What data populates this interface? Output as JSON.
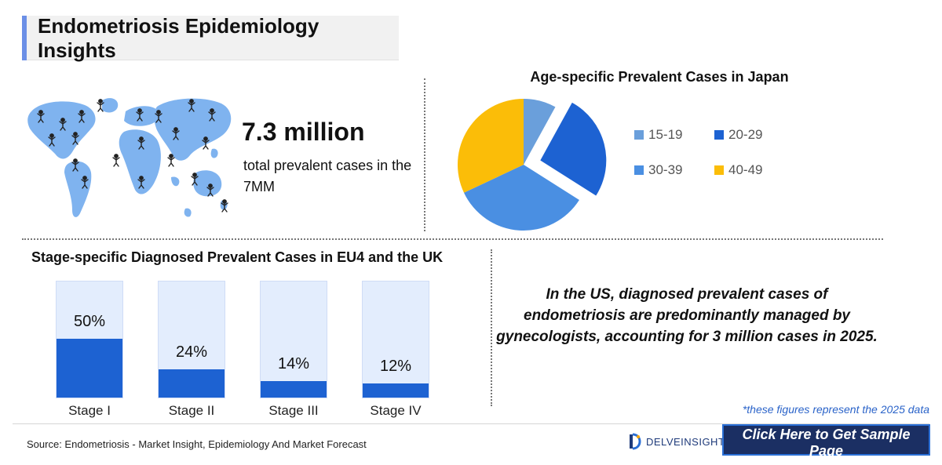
{
  "header": {
    "title": "Endometriosis Epidemiology Insights"
  },
  "summary": {
    "value": "7.3 million",
    "caption": "total prevalent cases in the 7MM"
  },
  "map": {
    "icon": "world-map-person-icons",
    "color": "#7fb3ef"
  },
  "chart_data": [
    {
      "type": "pie",
      "title": "Age-specific Prevalent Cases in Japan",
      "labels": [
        "15-19",
        "20-29",
        "30-39",
        "40-49"
      ],
      "values": [
        8,
        26,
        34,
        32
      ],
      "colors": [
        "#6a9fdb",
        "#1d62d2",
        "#4a8fe2",
        "#fbbd08"
      ],
      "exploded": "20-29",
      "legend": "right"
    },
    {
      "type": "bar",
      "title": "Stage-specific Diagnosed Prevalent Cases in EU4 and the UK",
      "categories": [
        "Stage I",
        "Stage II",
        "Stage III",
        "Stage IV"
      ],
      "values": [
        50,
        24,
        14,
        12
      ],
      "value_labels": [
        "50%",
        "24%",
        "14%",
        "12%"
      ],
      "ylim": [
        0,
        100
      ],
      "colors": {
        "fill": "#1d62d2",
        "track": "#e3edfd"
      }
    }
  ],
  "insight": "In the US, diagnosed prevalent cases of endometriosis are predominantly managed by gynecologists, accounting for 3 million cases in 2025.",
  "footnote": "*these figures represent the 2025 data",
  "footer": {
    "source": "Source: Endometriosis - Market Insight, Epidemiology And Market Forecast",
    "brand": "DELVEINSIGHT",
    "cta_label": "Click Here to Get Sample Page"
  }
}
